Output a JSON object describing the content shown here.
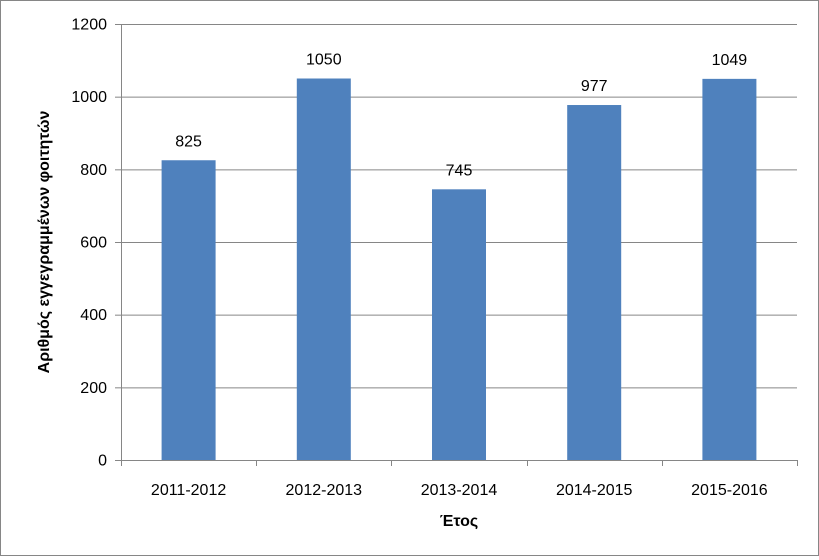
{
  "chart_data": {
    "type": "bar",
    "categories": [
      "2011-2012",
      "2012-2013",
      "2013-2014",
      "2014-2015",
      "2015-2016"
    ],
    "values": [
      825,
      1050,
      745,
      977,
      1049
    ],
    "data_labels": [
      "825",
      "1050",
      "745",
      "977",
      "1049"
    ],
    "xlabel": "Έτος",
    "ylabel": "Αριθμός εγγεγραμμένων φοιτητών",
    "ylim": [
      0,
      1200
    ],
    "yticks": [
      0,
      200,
      400,
      600,
      800,
      1000,
      1200
    ],
    "ytick_labels": [
      "0",
      "200",
      "400",
      "600",
      "800",
      "1000",
      "1200"
    ],
    "grid": true,
    "legend": "none",
    "colors": {
      "bar": "#4F81BD",
      "grid": "#868686",
      "axis": "#868686"
    }
  }
}
